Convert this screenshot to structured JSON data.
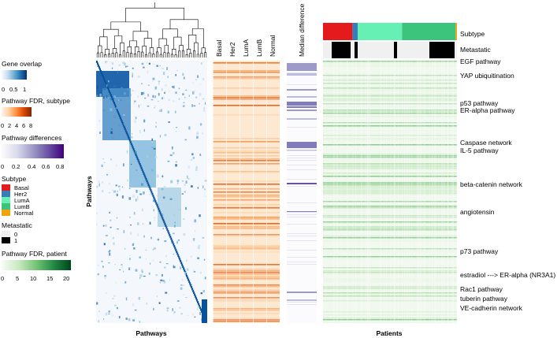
{
  "chart_data": {
    "type": "heatmap",
    "title": "",
    "xlabel_left": "Pathways",
    "ylabel_left": "Pathways",
    "xlabel_right": "Patients",
    "subtype_columns": [
      "Basal",
      "Her2",
      "LumA",
      "LumB",
      "Normal"
    ],
    "median_difference_label": "Median difference",
    "annotation_rows": [
      "Subtype",
      "Metastatic"
    ],
    "patient_subtype_blocks": [
      {
        "subtype": "Basal",
        "fraction": 0.22
      },
      {
        "subtype": "Her2",
        "fraction": 0.04
      },
      {
        "subtype": "LumA",
        "fraction": 0.33
      },
      {
        "subtype": "LumB",
        "fraction": 0.4
      },
      {
        "subtype": "Normal",
        "fraction": 0.01
      }
    ],
    "pathway_labels": [
      "EGF pathway",
      "YAP ubiquitination",
      "p53 pathway",
      "ER-alpha pathway",
      "Caspase network",
      "IL-5 pathway",
      "beta-catenin network",
      "angiotensin",
      "p73 pathway",
      "estradiol ---> ER-alpha (NR3A1)",
      "Rac1 pathway",
      "tuberin pathway",
      "VE-cadherin network"
    ],
    "legends": [
      {
        "title": "Gene overlap",
        "ticks": [
          "0",
          "0.5",
          "1"
        ],
        "range": [
          0,
          1
        ],
        "colors": [
          "#f7fbff",
          "#c6dbef",
          "#6baed6",
          "#2171b5",
          "#08306b"
        ]
      },
      {
        "title": "Pathway FDR, subtype",
        "ticks": [
          "0",
          "2",
          "4",
          "6",
          "8"
        ],
        "range": [
          0,
          8
        ],
        "colors": [
          "#fff5eb",
          "#fdd0a2",
          "#fd8d3c",
          "#d94801",
          "#7f2704"
        ]
      },
      {
        "title": "Pathway differences",
        "ticks": [
          "0",
          "0.2",
          "0.4",
          "0.6",
          "0.8"
        ],
        "range": [
          0,
          0.8
        ],
        "colors": [
          "#fcfbfd",
          "#dadaeb",
          "#9e9ac8",
          "#6a51a3",
          "#3f007d"
        ]
      },
      {
        "title": "Pathway FDR, patient",
        "ticks": [
          "0",
          "5",
          "10",
          "15",
          "20"
        ],
        "range": [
          0,
          20
        ],
        "colors": [
          "#f7fcf5",
          "#c7e9c0",
          "#74c476",
          "#238b45",
          "#00441b"
        ]
      }
    ],
    "subtype_legend": {
      "title": "Subtype",
      "entries": [
        {
          "label": "Basal",
          "color": "#e41a1c"
        },
        {
          "label": "Her2",
          "color": "#377eb8"
        },
        {
          "label": "LumA",
          "color": "#66f0b4"
        },
        {
          "label": "LumB",
          "color": "#3cc47c"
        },
        {
          "label": "Normal",
          "color": "#f0a30a"
        }
      ]
    },
    "metastatic_legend": {
      "title": "Metastatic",
      "entries": [
        {
          "label": "0",
          "color": "#f0f0f0"
        },
        {
          "label": "1",
          "color": "#000000"
        }
      ]
    }
  }
}
